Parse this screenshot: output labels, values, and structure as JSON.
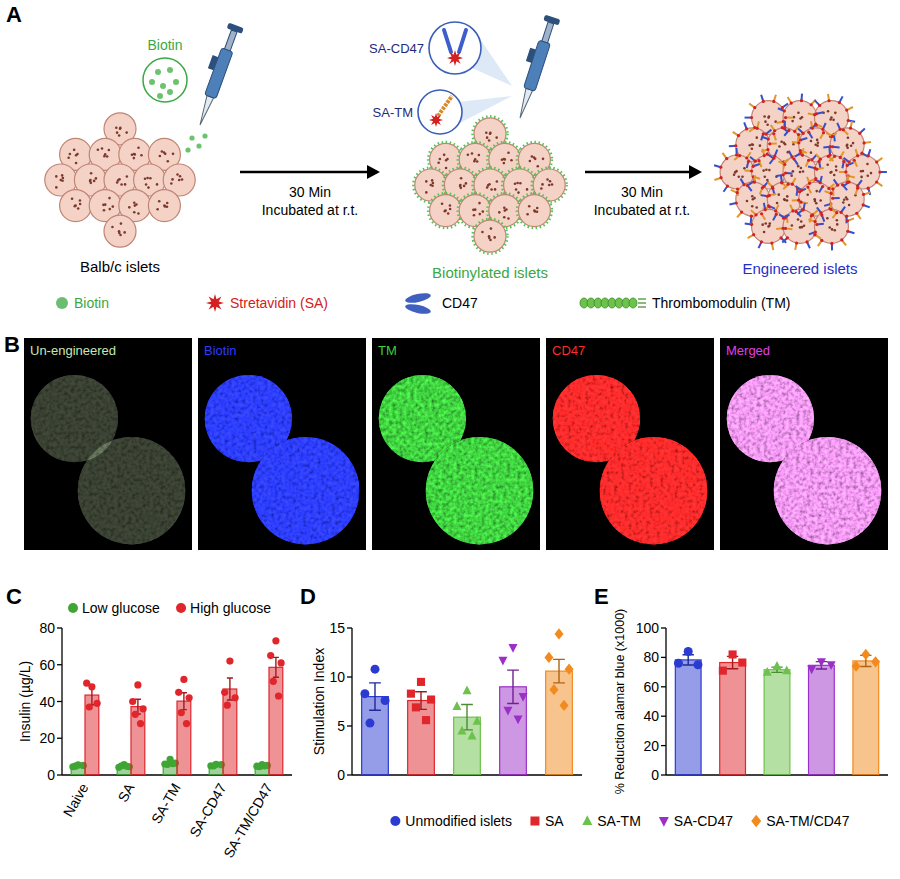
{
  "diagram": {
    "panel_label": "A",
    "nodes": [
      {
        "label": "Balb/c islets",
        "color": "#000000"
      },
      {
        "label": "Biotinylated islets",
        "color": "#3aa843"
      },
      {
        "label": "Engineered islets",
        "color": "#1f2fc9"
      }
    ],
    "reagents": [
      {
        "label": "Biotin",
        "color": "#3aa843"
      },
      {
        "label": "SA-CD47",
        "color": "#1f2a7a"
      },
      {
        "label": "SA-TM",
        "color": "#1f2a7a"
      }
    ],
    "edges": [
      {
        "label": [
          "30 Min",
          "Incubated at r.t."
        ]
      },
      {
        "label": [
          "30 Min",
          "Incubated at r.t."
        ]
      }
    ],
    "legend": [
      {
        "label": "Biotin",
        "color": "#3aa843"
      },
      {
        "label": "Stretavidin (SA)",
        "color": "#d42020"
      },
      {
        "label": "CD47",
        "color": "#000000"
      },
      {
        "label": "Thrombomodulin (TM)",
        "color": "#000000"
      }
    ]
  },
  "images": {
    "panel_label": "B",
    "panels": [
      {
        "label": "Un-engineered",
        "color": "#c8e6b0"
      },
      {
        "label": "Biotin",
        "color": "#2c3cff"
      },
      {
        "label": "TM",
        "color": "#3fcf3f"
      },
      {
        "label": "CD47",
        "color": "#ff2a2a"
      },
      {
        "label": "Merged",
        "color": "#e040e0"
      }
    ]
  },
  "chart_data": [
    {
      "type": "bar",
      "panel_label": "C",
      "ylabel": "Insulin (µg/L)",
      "categories": [
        "Naive",
        "SA",
        "SA-TM",
        "SA-CD47",
        "SA-TM/CD47"
      ],
      "ylim": [
        0,
        80
      ],
      "yticks": [
        0,
        20,
        40,
        60,
        80
      ],
      "legend": "top-left",
      "series": [
        {
          "name": "Low glucose",
          "color": "#3fa535",
          "marker": "circle",
          "values": [
            5.0,
            4.8,
            6.6,
            5.3,
            5.0
          ],
          "errors": [
            0.4,
            0.5,
            0.8,
            0.4,
            0.3
          ],
          "points": [
            [
              5.5,
              4.5,
              5.2,
              4.8
            ],
            [
              5.6,
              4.2,
              4.5,
              5.0,
              4.7
            ],
            [
              8.5,
              6.0,
              6.5,
              5.8,
              6.2
            ],
            [
              5.8,
              5.0,
              5.6,
              4.9
            ],
            [
              5.6,
              4.8,
              5.2,
              4.5,
              4.9
            ]
          ]
        },
        {
          "name": "High glucose",
          "color": "#e0262b",
          "marker": "circle",
          "values": [
            43.5,
            37.2,
            40.2,
            46.8,
            58.6
          ],
          "errors": [
            5.3,
            4.0,
            4.6,
            6.0,
            5.4
          ],
          "points": [
            [
              48,
              50,
              39,
              37
            ],
            [
              49,
              40,
              36,
              33,
              28
            ],
            [
              52,
              45,
              42,
              34,
              28
            ],
            [
              62,
              45,
              42,
              38
            ],
            [
              73,
              65,
              61,
              51,
              43
            ]
          ]
        }
      ]
    },
    {
      "type": "bar",
      "panel_label": "D",
      "ylabel": "Stimulation Index",
      "ylim": [
        0,
        15
      ],
      "yticks": [
        0,
        5,
        10,
        15
      ],
      "tick_labels": "y",
      "legend": "bottom",
      "series": [
        {
          "name": "Unmodified islets",
          "color": "#2b3bd1",
          "marker": "circle",
          "values": [
            8.0
          ],
          "errors": [
            1.4
          ],
          "points": [
            [
              10.8,
              8.3,
              7.6,
              5.3
            ]
          ]
        },
        {
          "name": "SA",
          "color": "#e0262b",
          "marker": "square",
          "values": [
            7.6
          ],
          "errors": [
            0.9
          ],
          "points": [
            [
              9.5,
              8.3,
              7.7,
              6.9,
              5.6
            ]
          ]
        },
        {
          "name": "SA-TM",
          "color": "#6cc24a",
          "marker": "triangle",
          "values": [
            5.9
          ],
          "errors": [
            1.3
          ],
          "points": [
            [
              8.6,
              7.0,
              5.5,
              4.5,
              4.0
            ]
          ]
        },
        {
          "name": "SA-CD47",
          "color": "#9b30c8",
          "marker": "triangle-down",
          "values": [
            9.0
          ],
          "errors": [
            1.7
          ],
          "points": [
            [
              13.0,
              11.7,
              8.0,
              6.6,
              5.7
            ]
          ]
        },
        {
          "name": "SA-TM/CD47",
          "color": "#f28a1e",
          "marker": "diamond",
          "values": [
            10.6
          ],
          "errors": [
            1.2
          ],
          "points": [
            [
              14.4,
              12.0,
              10.8,
              8.7,
              7.1
            ]
          ]
        }
      ]
    },
    {
      "type": "bar",
      "panel_label": "E",
      "ylabel": "% Reduction alamar blue (x1000)",
      "ylim": [
        0,
        100
      ],
      "yticks": [
        0,
        20,
        40,
        60,
        80,
        100
      ],
      "tick_labels": "y",
      "series": [
        {
          "color": "#2b3bd1",
          "marker": "circle",
          "values": [
            78.3
          ],
          "errors": [
            3.5
          ],
          "points": [
            [
              84,
              76,
              75
            ]
          ]
        },
        {
          "color": "#e0262b",
          "marker": "square",
          "values": [
            76.5
          ],
          "errors": [
            4.2
          ],
          "points": [
            [
              82,
              71,
              76.5
            ]
          ]
        },
        {
          "color": "#6cc24a",
          "marker": "triangle",
          "values": [
            71.6
          ],
          "errors": [
            1.8
          ],
          "points": [
            [
              74,
              70,
              71
            ]
          ]
        },
        {
          "color": "#9b30c8",
          "marker": "triangle-down",
          "values": [
            74.6
          ],
          "errors": [
            2.5
          ],
          "points": [
            [
              77,
              72,
              75
            ]
          ]
        },
        {
          "color": "#f28a1e",
          "marker": "diamond",
          "values": [
            77.6
          ],
          "errors": [
            3.8
          ],
          "points": [
            [
              82,
              74,
              77
            ]
          ]
        }
      ]
    }
  ]
}
